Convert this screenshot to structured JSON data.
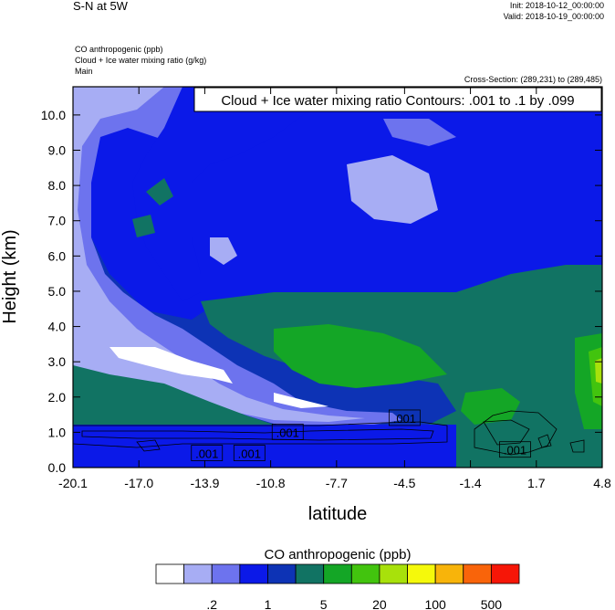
{
  "header": {
    "title_left": "S-N at 5W",
    "init": "Init: 2018-10-12_00:00:00",
    "valid": "Valid: 2018-10-19_00:00:00",
    "field1": "CO anthropogenic   (ppb)",
    "field2": "Cloud + Ice water mixing ratio   (g/kg)",
    "field3": "Main",
    "cross_section": "Cross-Section: (289,231) to (289,485)",
    "contour_info": "Cloud + Ice water mixing ratio Contours: .001 to .1 by .099"
  },
  "chart_data": {
    "type": "heatmap",
    "xlabel": "latitude",
    "ylabel": "Height (km)",
    "xlim": [
      -20.1,
      4.8
    ],
    "ylim": [
      0.0,
      10.8
    ],
    "x_ticks": [
      "-20.1",
      "-17.0",
      "-13.9",
      "-10.8",
      "-7.7",
      "-4.5",
      "-1.4",
      "1.7",
      "4.8"
    ],
    "y_ticks": [
      "0.0",
      "1.0",
      "2.0",
      "3.0",
      "4.0",
      "5.0",
      "6.0",
      "7.0",
      "8.0",
      "9.0",
      "10.0"
    ],
    "contour_labels": [
      {
        "text": ".001",
        "x": -13.8,
        "y": 0.4
      },
      {
        "text": ".001",
        "x": -11.8,
        "y": 0.4
      },
      {
        "text": ".001",
        "x": -10.0,
        "y": 1.0
      },
      {
        "text": ".001",
        "x": -4.5,
        "y": 1.4
      },
      {
        "text": ".001",
        "x": 0.7,
        "y": 0.5
      }
    ],
    "colorbar": {
      "title": "CO anthropogenic  (ppb)",
      "colors": [
        "#ffffff",
        "#a7adf4",
        "#6d73ee",
        "#0b19e8",
        "#0d33b5",
        "#117363",
        "#14a626",
        "#42c40e",
        "#a8e10b",
        "#f5f90b",
        "#f8b40a",
        "#f9640a",
        "#f61607"
      ],
      "labels": [
        {
          "text": ".2",
          "boundary": 2
        },
        {
          "text": "1",
          "boundary": 4
        },
        {
          "text": "5",
          "boundary": 6
        },
        {
          "text": "20",
          "boundary": 8
        },
        {
          "text": "100",
          "boundary": 10
        },
        {
          "text": "500",
          "boundary": 12
        }
      ]
    }
  }
}
